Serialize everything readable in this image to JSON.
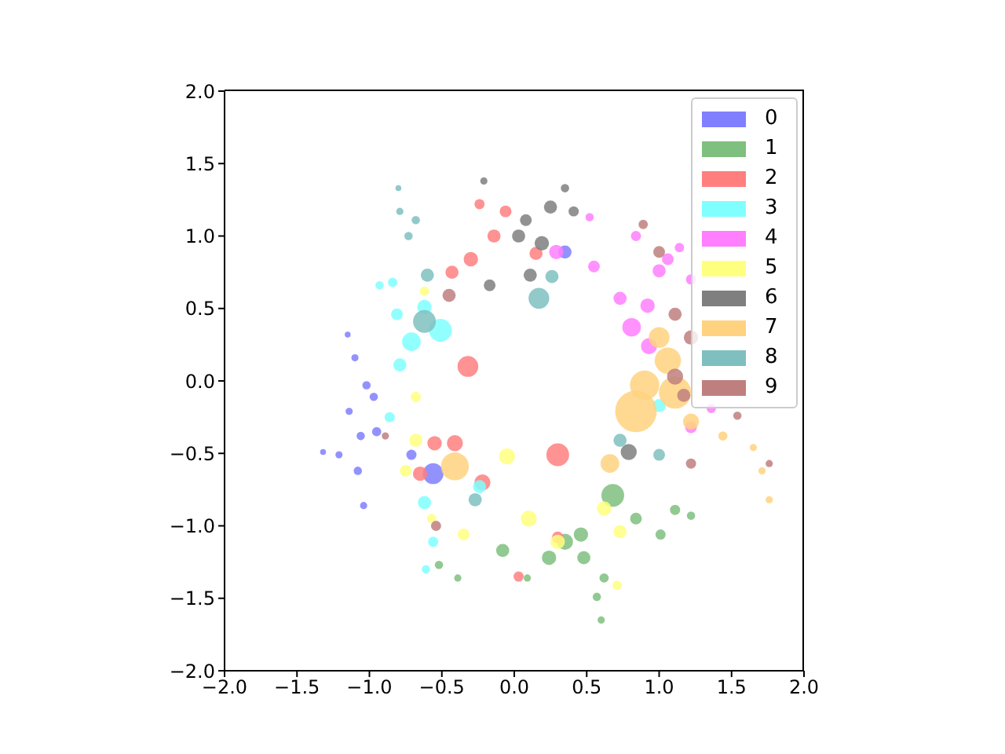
{
  "chart_data": {
    "type": "bubble",
    "legend": "top right",
    "xlim": [
      -2,
      2
    ],
    "ylim": [
      -2,
      2
    ],
    "xticks": [
      {
        "value": -2,
        "label": "−2.0"
      },
      {
        "value": -1.5,
        "label": "−1.5"
      },
      {
        "value": -1,
        "label": "−1.0"
      },
      {
        "value": -0.5,
        "label": "−0.5"
      },
      {
        "value": 0,
        "label": "0.0"
      },
      {
        "value": 0.5,
        "label": "0.5"
      },
      {
        "value": 1,
        "label": "1.0"
      },
      {
        "value": 1.5,
        "label": "1.5"
      },
      {
        "value": 2,
        "label": "2.0"
      }
    ],
    "yticks": [
      {
        "value": -2,
        "label": "−2.0"
      },
      {
        "value": -1.5,
        "label": "−1.5"
      },
      {
        "value": -1,
        "label": "−1.0"
      },
      {
        "value": -0.5,
        "label": "−0.5"
      },
      {
        "value": 0,
        "label": "0.0"
      },
      {
        "value": 0.5,
        "label": "0.5"
      },
      {
        "value": 1,
        "label": "1.0"
      },
      {
        "value": 1.5,
        "label": "1.5"
      },
      {
        "value": 2,
        "label": "2.0"
      }
    ],
    "series": [
      {
        "name": "0",
        "color": "#7f7fff",
        "x": [
          -1.15,
          -1.1,
          -1.02,
          -1.14,
          -1.06,
          -1.21,
          -1.32,
          -1.08,
          -1.04,
          -0.97,
          -0.95,
          -0.56,
          -0.71,
          0.35
        ],
        "values": [
          0.32,
          0.16,
          -0.03,
          -0.21,
          -0.38,
          -0.51,
          -0.49,
          -0.62,
          -0.86,
          -0.11,
          -0.35,
          -0.64,
          -0.51,
          0.89
        ],
        "sizes": [
          0.02,
          0.03,
          0.04,
          0.03,
          0.04,
          0.03,
          0.02,
          0.04,
          0.03,
          0.04,
          0.05,
          0.25,
          0.06,
          0.1
        ]
      },
      {
        "name": "1",
        "color": "#7fbf7f",
        "x": [
          0.68,
          1.11,
          0.84,
          0.35,
          0.24,
          0.48,
          0.62,
          0.57,
          0.6,
          0.46,
          -0.08,
          1.01,
          1.22,
          -0.52,
          -0.39,
          0.09
        ],
        "values": [
          -0.79,
          -0.89,
          -0.95,
          -1.11,
          -1.22,
          -1.22,
          -1.36,
          -1.49,
          -1.65,
          -1.06,
          -1.17,
          -1.06,
          -0.93,
          -1.27,
          -1.36,
          -1.36
        ],
        "sizes": [
          0.3,
          0.06,
          0.08,
          0.15,
          0.12,
          0.1,
          0.05,
          0.04,
          0.03,
          0.12,
          0.1,
          0.06,
          0.04,
          0.04,
          0.03,
          0.03
        ]
      },
      {
        "name": "2",
        "color": "#ff7f7f",
        "x": [
          -0.3,
          -0.06,
          -0.14,
          -0.24,
          -0.32,
          -0.43,
          0.15,
          0.3,
          -0.41,
          -0.55,
          0.3,
          0.03,
          -0.65,
          -0.22
        ],
        "values": [
          0.84,
          1.17,
          1.0,
          1.22,
          0.1,
          0.75,
          0.88,
          -0.51,
          -0.43,
          -0.43,
          -1.08,
          -1.35,
          -0.64,
          -0.7
        ],
        "sizes": [
          0.12,
          0.08,
          0.1,
          0.06,
          0.25,
          0.1,
          0.1,
          0.3,
          0.15,
          0.12,
          0.08,
          0.06,
          0.12,
          0.15
        ]
      },
      {
        "name": "3",
        "color": "#7fffff",
        "x": [
          -0.84,
          -0.81,
          -0.51,
          -0.62,
          -0.71,
          -0.79,
          -0.61,
          -0.56,
          -0.62,
          -0.93,
          -0.86,
          -0.24,
          1.0
        ],
        "values": [
          0.68,
          0.46,
          0.35,
          0.51,
          0.27,
          0.11,
          -1.3,
          -1.11,
          -0.84,
          0.66,
          -0.25,
          -0.73,
          -0.17
        ],
        "sizes": [
          0.05,
          0.08,
          0.3,
          0.12,
          0.2,
          0.1,
          0.04,
          0.06,
          0.1,
          0.04,
          0.06,
          0.1,
          0.1
        ]
      },
      {
        "name": "4",
        "color": "#ff7fff",
        "x": [
          0.55,
          0.73,
          0.81,
          0.92,
          0.93,
          1.0,
          0.84,
          1.06,
          1.14,
          1.22,
          0.52,
          1.22,
          1.36,
          0.29
        ],
        "values": [
          0.79,
          0.57,
          0.37,
          0.52,
          0.24,
          0.76,
          1.0,
          0.84,
          0.92,
          0.7,
          1.13,
          -0.32,
          -0.19,
          0.89
        ],
        "sizes": [
          0.08,
          0.1,
          0.2,
          0.12,
          0.15,
          0.1,
          0.06,
          0.08,
          0.05,
          0.06,
          0.04,
          0.08,
          0.05,
          0.12
        ]
      },
      {
        "name": "5",
        "color": "#ffff7f",
        "x": [
          -0.68,
          -0.05,
          -0.68,
          -0.75,
          0.1,
          0.3,
          0.62,
          0.73,
          -0.35,
          -0.57,
          -0.62,
          0.71
        ],
        "values": [
          -0.11,
          -0.52,
          -0.41,
          -0.62,
          -0.95,
          -1.11,
          -0.88,
          -1.04,
          -1.06,
          -0.95,
          0.62,
          -1.41
        ],
        "sizes": [
          0.06,
          0.15,
          0.1,
          0.08,
          0.15,
          0.12,
          0.12,
          0.1,
          0.08,
          0.05,
          0.05,
          0.05
        ]
      },
      {
        "name": "6",
        "color": "#7f7f7f",
        "x": [
          0.08,
          0.25,
          0.35,
          0.19,
          0.11,
          -0.17,
          0.03,
          0.41,
          0.79,
          -0.21
        ],
        "values": [
          1.11,
          1.2,
          1.33,
          0.95,
          0.73,
          0.66,
          1.0,
          1.17,
          -0.49,
          1.38
        ],
        "sizes": [
          0.08,
          0.1,
          0.04,
          0.12,
          0.1,
          0.08,
          0.1,
          0.06,
          0.15,
          0.03
        ]
      },
      {
        "name": "7",
        "color": "#ffd27f",
        "x": [
          0.84,
          0.9,
          1.06,
          1.11,
          1.0,
          0.66,
          1.22,
          1.44,
          1.65,
          1.76,
          1.71,
          -0.41
        ],
        "values": [
          -0.21,
          -0.03,
          0.14,
          -0.08,
          0.3,
          -0.57,
          -0.28,
          -0.38,
          -0.46,
          -0.82,
          -0.62,
          -0.59
        ],
        "sizes": [
          1,
          0.5,
          0.4,
          0.6,
          0.25,
          0.2,
          0.15,
          0.05,
          0.03,
          0.03,
          0.03,
          0.45
        ]
      },
      {
        "name": "8",
        "color": "#7fbfbf",
        "x": [
          -0.6,
          -0.62,
          0.17,
          0.26,
          -0.68,
          -0.73,
          -0.79,
          -0.8,
          -0.27,
          0.73,
          1.0
        ],
        "values": [
          0.73,
          0.41,
          0.57,
          0.72,
          1.11,
          1.0,
          1.17,
          1.33,
          -0.82,
          -0.41,
          -0.51
        ],
        "sizes": [
          0.1,
          0.3,
          0.25,
          0.1,
          0.04,
          0.04,
          0.03,
          0.02,
          0.1,
          0.1,
          0.08
        ]
      },
      {
        "name": "9",
        "color": "#bf7f7f",
        "x": [
          -0.45,
          0.89,
          1.0,
          1.11,
          1.22,
          1.11,
          1.17,
          1.54,
          1.76,
          1.22,
          -0.89,
          -0.54
        ],
        "values": [
          0.59,
          1.08,
          0.89,
          0.46,
          0.3,
          0.03,
          -0.1,
          -0.24,
          -0.57,
          -0.57,
          -0.38,
          -1.0
        ],
        "sizes": [
          0.1,
          0.05,
          0.08,
          0.1,
          0.12,
          0.15,
          0.1,
          0.04,
          0.03,
          0.06,
          0.03,
          0.06
        ]
      }
    ]
  }
}
